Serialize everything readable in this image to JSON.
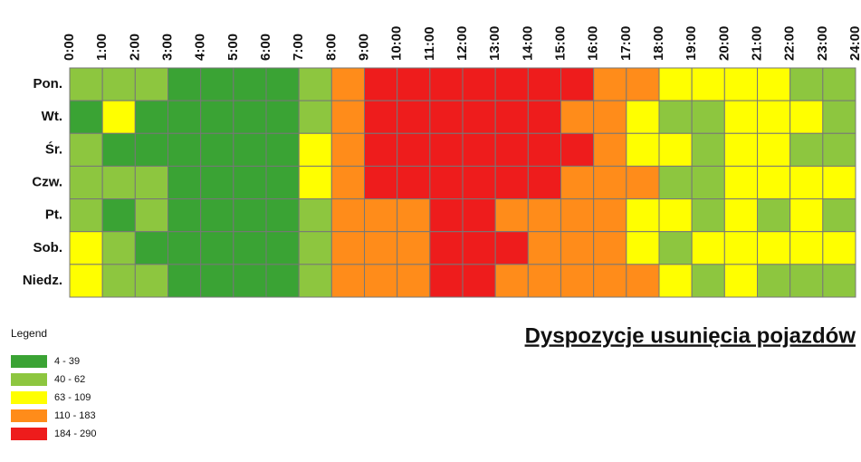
{
  "chart_data": {
    "type": "heatmap",
    "title": "Dyspozycje usunięcia pojazdów",
    "x": [
      "0:00",
      "1:00",
      "2:00",
      "3:00",
      "4:00",
      "5:00",
      "6:00",
      "7:00",
      "8:00",
      "9:00",
      "10:00",
      "11:00",
      "12:00",
      "13:00",
      "14:00",
      "15:00",
      "16:00",
      "17:00",
      "18:00",
      "19:00",
      "20:00",
      "21:00",
      "22:00",
      "23:00",
      "24:00"
    ],
    "categories": [
      "Pon.",
      "Wt.",
      "Śr.",
      "Czw.",
      "Pt.",
      "Sob.",
      "Niedz."
    ],
    "legend_title": "Legend",
    "legend": [
      {
        "label": "4 - 39",
        "color": "#3aa334"
      },
      {
        "label": "40 - 62",
        "color": "#8dc63f"
      },
      {
        "label": "63 - 109",
        "color": "#ffff00"
      },
      {
        "label": "110 - 183",
        "color": "#ff8c1a"
      },
      {
        "label": "184 - 290",
        "color": "#ee1c1c"
      }
    ],
    "classes": [
      [
        1,
        1,
        1,
        0,
        0,
        0,
        0,
        1,
        3,
        4,
        4,
        4,
        4,
        4,
        4,
        4,
        3,
        3,
        2,
        2,
        2,
        2,
        1,
        1
      ],
      [
        0,
        2,
        0,
        0,
        0,
        0,
        0,
        1,
        3,
        4,
        4,
        4,
        4,
        4,
        4,
        3,
        3,
        2,
        1,
        1,
        2,
        2,
        2,
        1
      ],
      [
        1,
        0,
        0,
        0,
        0,
        0,
        0,
        2,
        3,
        4,
        4,
        4,
        4,
        4,
        4,
        4,
        3,
        2,
        2,
        1,
        2,
        2,
        1,
        1
      ],
      [
        1,
        1,
        1,
        0,
        0,
        0,
        0,
        2,
        3,
        4,
        4,
        4,
        4,
        4,
        4,
        3,
        3,
        3,
        1,
        1,
        2,
        2,
        2,
        2
      ],
      [
        1,
        0,
        1,
        0,
        0,
        0,
        0,
        1,
        3,
        3,
        3,
        4,
        4,
        3,
        3,
        3,
        3,
        2,
        2,
        1,
        2,
        1,
        2,
        1
      ],
      [
        2,
        1,
        0,
        0,
        0,
        0,
        0,
        1,
        3,
        3,
        3,
        4,
        4,
        4,
        3,
        3,
        3,
        2,
        1,
        2,
        2,
        2,
        2,
        2
      ],
      [
        2,
        1,
        1,
        0,
        0,
        0,
        0,
        1,
        3,
        3,
        3,
        4,
        4,
        3,
        3,
        3,
        3,
        3,
        2,
        1,
        2,
        1,
        1,
        1
      ]
    ]
  }
}
